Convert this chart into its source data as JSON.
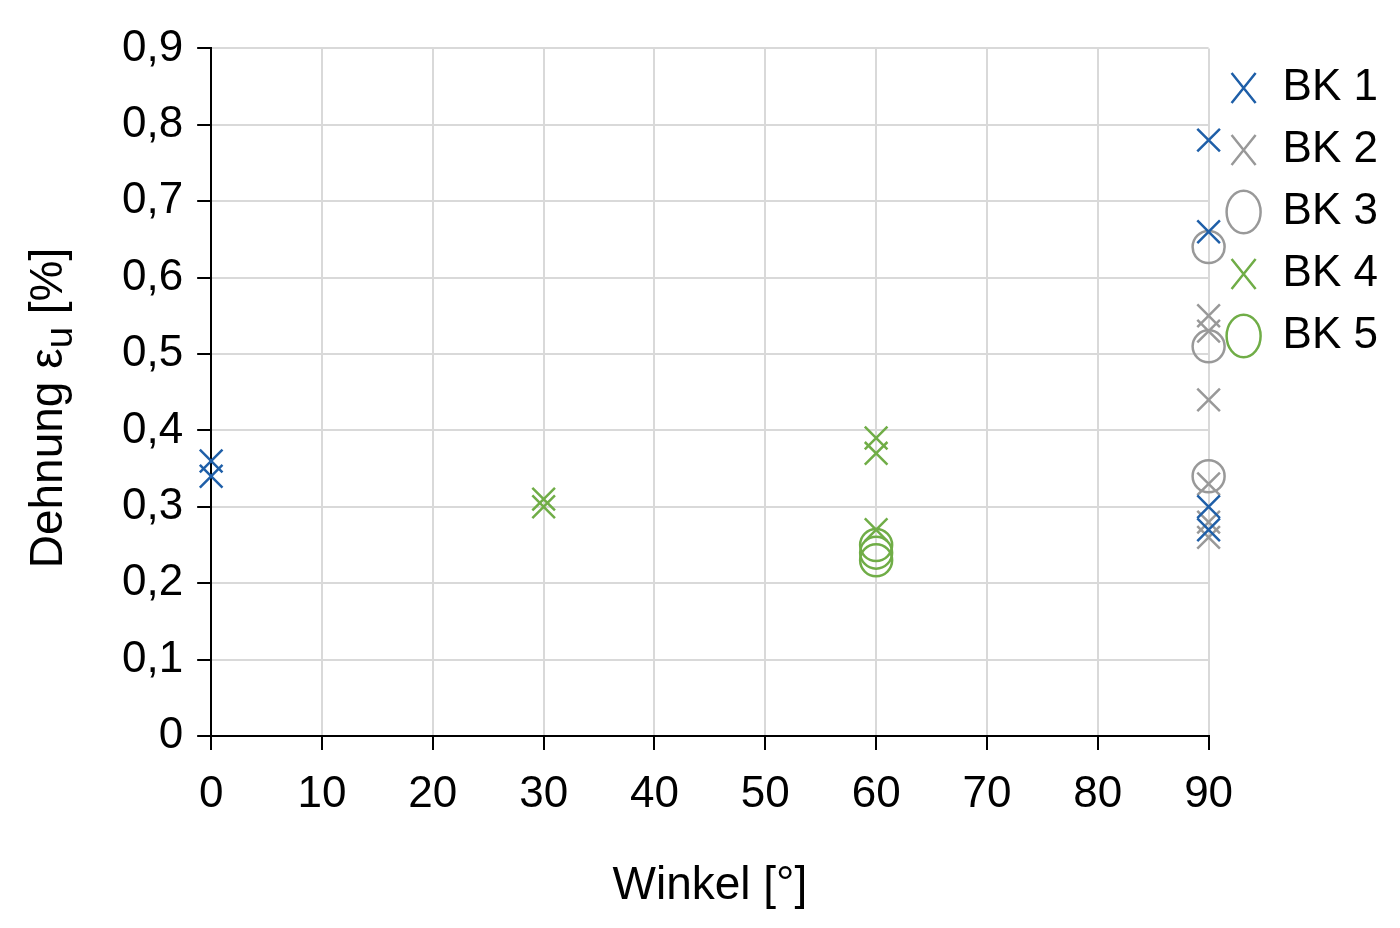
{
  "chart_data": {
    "type": "scatter",
    "xlabel": "Winkel [°]",
    "ylabel": "Dehnung ε$_{u}$ [%]",
    "xlim": [
      0,
      90
    ],
    "xticks": [
      0,
      10,
      20,
      30,
      40,
      50,
      60,
      70,
      80,
      90
    ],
    "ylim": [
      0,
      0.9
    ],
    "yticks": [
      0,
      {
        "value": 0.1,
        "label": "0,1"
      },
      {
        "value": 0.2,
        "label": "0,2"
      },
      {
        "value": 0.3,
        "label": "0,3"
      },
      {
        "value": 0.4,
        "label": "0,4"
      },
      {
        "value": 0.5,
        "label": "0,5"
      },
      {
        "value": 0.6,
        "label": "0,6"
      },
      {
        "value": 0.7,
        "label": "0,7"
      },
      {
        "value": 0.8,
        "label": "0,8"
      },
      {
        "value": 0.9,
        "label": "0,9"
      }
    ],
    "grid": true,
    "legend": "right",
    "series": [
      {
        "name": "BK 1",
        "color": "#1f5fa8",
        "marker": "cross",
        "x": [
          0,
          0,
          90,
          90,
          90,
          90
        ],
        "values": [
          0.36,
          0.34,
          0.78,
          0.66,
          0.3,
          0.27
        ]
      },
      {
        "name": "BK 2",
        "color": "#999999",
        "marker": "cross",
        "x": [
          90,
          90,
          90,
          90,
          90,
          90
        ],
        "values": [
          0.55,
          0.53,
          0.44,
          0.33,
          0.28,
          0.26
        ]
      },
      {
        "name": "BK 3",
        "color": "#999999",
        "marker": "circle",
        "x": [
          90,
          90,
          90
        ],
        "values": [
          0.64,
          0.51,
          0.34
        ]
      },
      {
        "name": "BK 4",
        "color": "#70ad47",
        "marker": "cross",
        "x": [
          30,
          30,
          60,
          60,
          60
        ],
        "values": [
          0.31,
          0.3,
          0.39,
          0.37,
          0.27
        ]
      },
      {
        "name": "BK 5",
        "color": "#70ad47",
        "marker": "circle",
        "x": [
          60,
          60,
          60
        ],
        "values": [
          0.25,
          0.24,
          0.23
        ]
      }
    ]
  }
}
